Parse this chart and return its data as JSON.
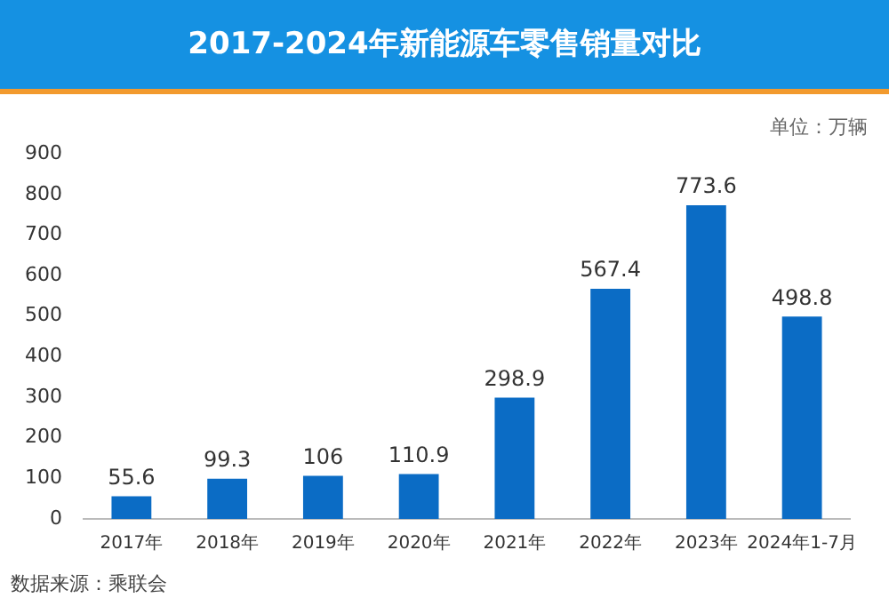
{
  "chart_data": {
    "type": "bar",
    "title": "2017-2024年新能源车零售销量对比",
    "categories": [
      "2017年",
      "2018年",
      "2019年",
      "2020年",
      "2021年",
      "2022年",
      "2023年",
      "2024年1-7月"
    ],
    "values": [
      55.6,
      99.3,
      106,
      110.9,
      298.9,
      567.4,
      773.6,
      498.8
    ],
    "color": "#0b6cc5",
    "ylim": [
      0,
      900
    ],
    "yticks": [
      0,
      100,
      200,
      300,
      400,
      500,
      600,
      700,
      800,
      900
    ],
    "grid": false,
    "legend": false,
    "data_labels": true,
    "annotations": [
      "单位：万辆",
      "数据来源：乘联会"
    ]
  }
}
